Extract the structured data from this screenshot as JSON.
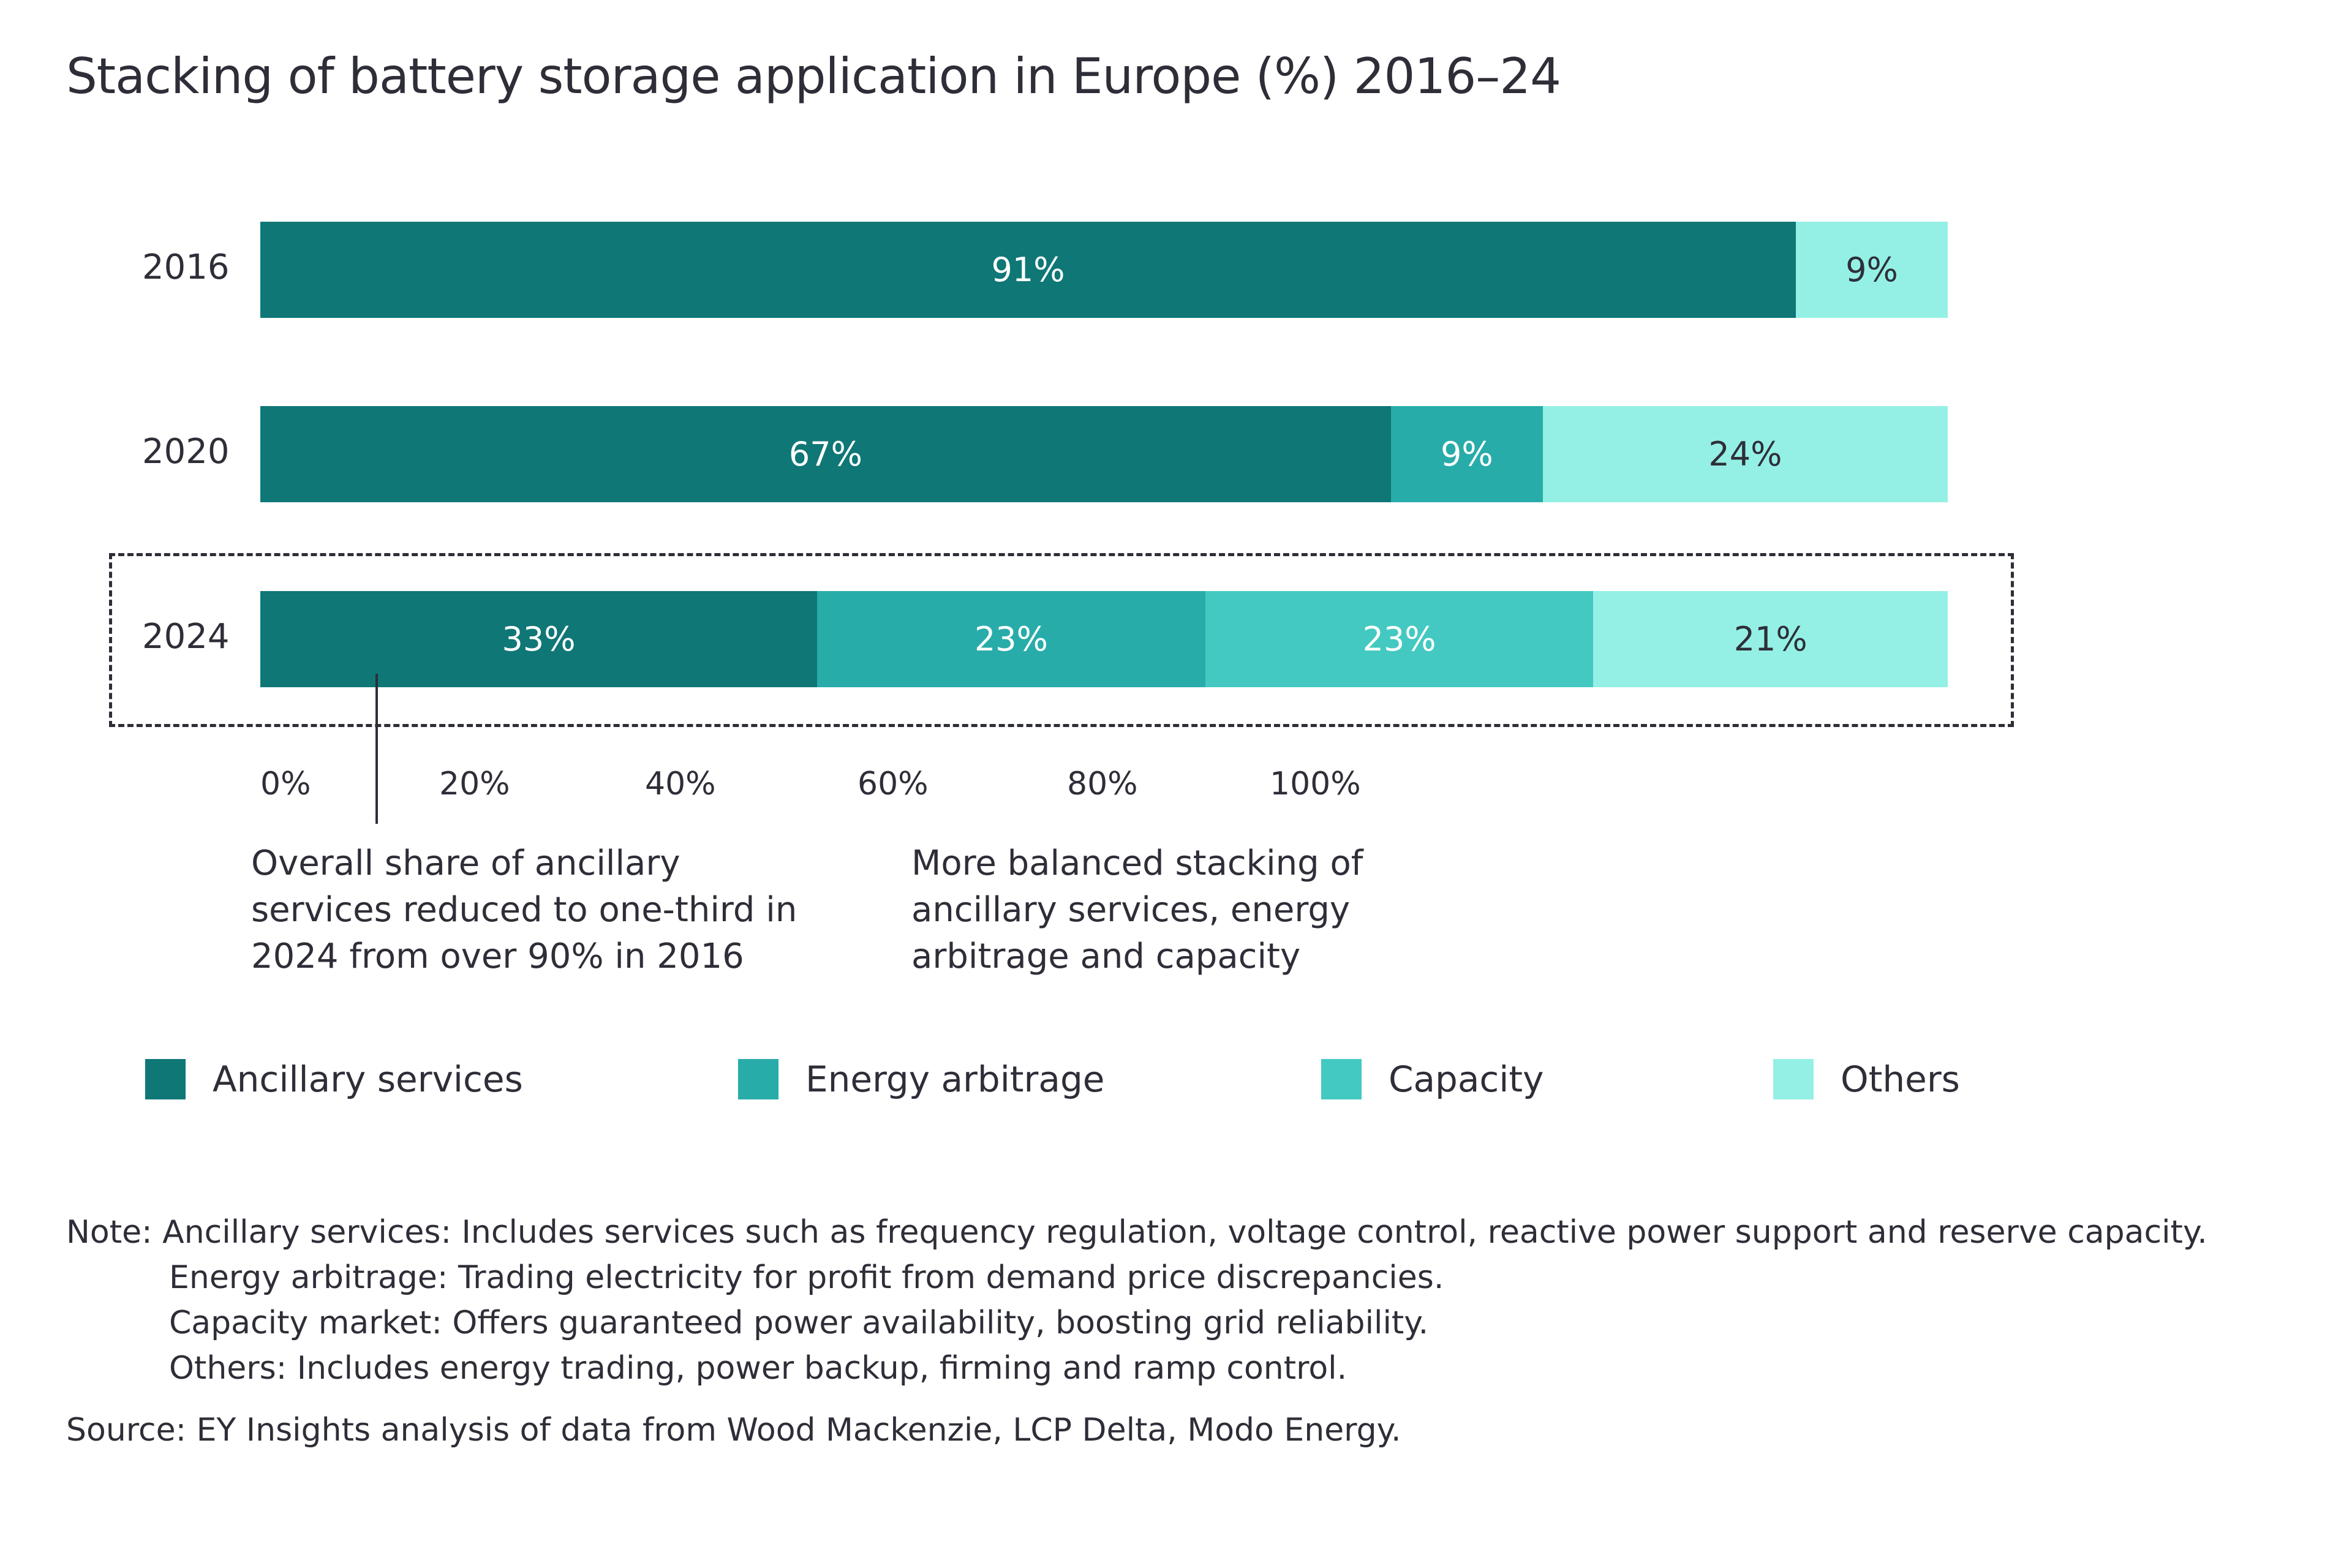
{
  "chart_data": {
    "type": "bar",
    "orientation": "horizontal",
    "stacked": true,
    "title": "Stacking of battery storage application in Europe (%) 2016–24",
    "categories": [
      "2016",
      "2020",
      "2024"
    ],
    "series": [
      {
        "name": "Ancillary services",
        "color": "#0f7776",
        "values": [
          91,
          67,
          33
        ],
        "labels": [
          "91%",
          "67%",
          "33%"
        ]
      },
      {
        "name": "Energy arbitrage",
        "color": "#28aca9",
        "values": [
          0,
          9,
          23
        ],
        "labels": [
          "",
          "9%",
          "23%"
        ]
      },
      {
        "name": "Capacity",
        "color": "#43c9c1",
        "values": [
          0,
          0,
          23
        ],
        "labels": [
          "",
          "",
          "23%"
        ]
      },
      {
        "name": "Others",
        "color": "#94f0e5",
        "values": [
          9,
          24,
          21
        ],
        "labels": [
          "9%",
          "24%",
          "21%"
        ]
      }
    ],
    "xticks": [
      "0%",
      "20%",
      "40%",
      "60%",
      "80%",
      "100%"
    ],
    "xlim": [
      0,
      100
    ],
    "xlabel": "",
    "ylabel": "",
    "grid": false,
    "legend": "bottom",
    "highlighted_category": "2024",
    "annotations": [
      "Overall share of ancillary services reduced to one-third in 2024 from over 90% in 2016",
      "More balanced stacking of ancillary services, energy arbitrage and capacity"
    ]
  },
  "annotations": {
    "left": [
      "Overall share of ancillary",
      "services reduced to one-third in",
      "2024 from over 90% in 2016"
    ],
    "right": [
      "More balanced stacking of",
      "ancillary services, energy",
      "arbitrage and capacity"
    ]
  },
  "notes": {
    "lines": [
      "Note: Ancillary services: Includes services such as frequency regulation, voltage control, reactive power support and reserve capacity.",
      "Energy arbitrage: Trading electricity for profit from demand price discrepancies.",
      "Capacity market: Offers guaranteed power availability, boosting grid reliability.",
      "Others: Includes energy trading, power backup, firming and ramp control."
    ],
    "source": "Source: EY Insights analysis of data from Wood Mackenzie, LCP Delta, Modo Energy."
  }
}
